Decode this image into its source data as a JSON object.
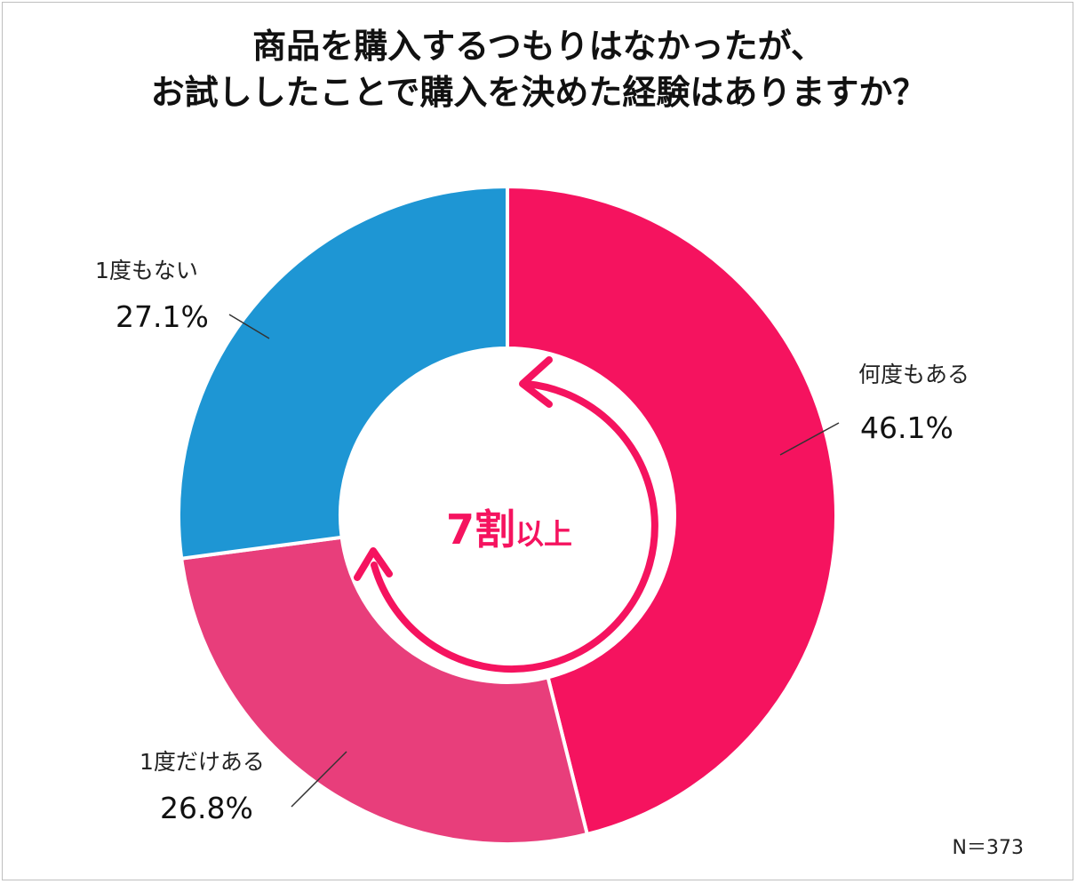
{
  "title": {
    "line1": "商品を購入するつもりはなかったが、",
    "line2": "お試ししたことで購入を決めた経験はありますか？"
  },
  "chart_data": {
    "type": "pie",
    "style": "donut",
    "title": "商品を購入するつもりはなかったが、お試ししたことで購入を決めた経験はありますか？",
    "categories": [
      "何度もある",
      "1度だけある",
      "1度もない"
    ],
    "values": [
      46.1,
      26.8,
      27.1
    ],
    "value_labels": [
      "46.1%",
      "26.8%",
      "27.1%"
    ],
    "colors": [
      "#f5135f",
      "#e83e7b",
      "#1e96d4"
    ],
    "unit": "%",
    "center_label": {
      "number": "7割",
      "suffix": "以上",
      "color": "#f5135f"
    }
  },
  "note": "N＝373"
}
